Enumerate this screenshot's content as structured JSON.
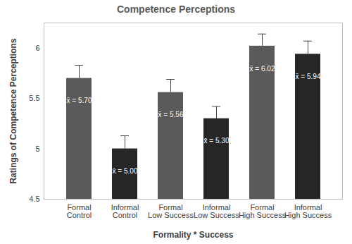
{
  "chart_data": {
    "type": "bar",
    "title": "Competence Perceptions",
    "x_label": "Formality * Success",
    "y_label": "Ratings of Competence Perceptions",
    "categories": [
      "Formal\nControl",
      "Informal\nControl",
      "Formal\nLow Success",
      "Informal\nLow Success",
      "Formal\nHigh Success",
      "Informal\nHigh Success"
    ],
    "values": [
      5.7,
      5.0,
      5.56,
      5.3,
      6.02,
      5.94
    ],
    "value_labels": [
      "x̄ = 5.70",
      "x̄ = 5.00",
      "x̄ = 5.56",
      "x̄ = 5.30",
      "x̄ = 6.02",
      "x̄ = 5.94"
    ],
    "errors": [
      0.13,
      0.13,
      0.13,
      0.12,
      0.12,
      0.13
    ],
    "colors": [
      "#5a5a5a",
      "#262626",
      "#5a5a5a",
      "#262626",
      "#5a5a5a",
      "#262626"
    ],
    "ylim": [
      4.5,
      6.25
    ],
    "yticks": [
      4.5,
      5,
      5.5,
      6
    ],
    "data_labels": true,
    "grid": false
  }
}
